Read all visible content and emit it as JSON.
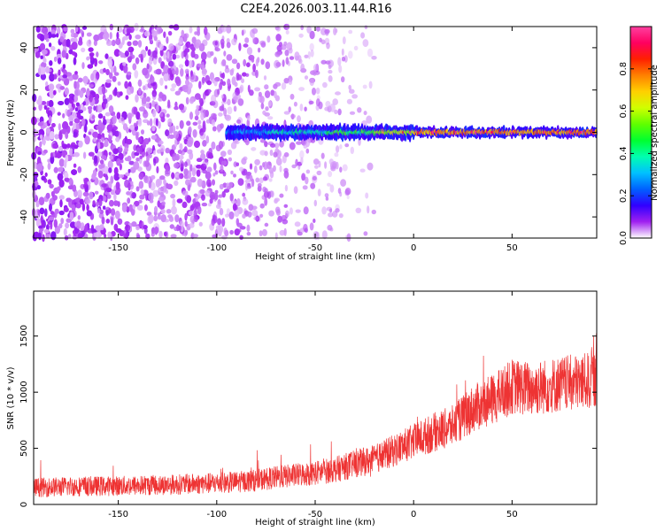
{
  "title": "C2E4.2026.003.11.44.R16",
  "colors": {
    "snr_line": "#ee3333",
    "frame": "#000000"
  },
  "chart_data": [
    {
      "type": "heatmap",
      "title": "C2E4.2026.003.11.44.R16",
      "xlabel": "Height of straight line (km)",
      "ylabel": "Frequency (Hz)",
      "xlim": [
        -193,
        93
      ],
      "ylim": [
        -50,
        50
      ],
      "x_ticks": [
        -150,
        -100,
        -50,
        0,
        50
      ],
      "y_ticks": [
        -40,
        -20,
        0,
        20,
        40
      ],
      "colorbar": {
        "label": "Normalized spectral amplitude",
        "range": [
          0,
          1
        ],
        "ticks": [
          "0.0",
          "0.2",
          "0.4",
          "0.6",
          "0.8"
        ],
        "tick_values": [
          0,
          0.2,
          0.4,
          0.6,
          0.8
        ],
        "colors": [
          "#ffffff",
          "#a020f0",
          "#3000ff",
          "#0060ff",
          "#00c0ff",
          "#00ffb0",
          "#00ff30",
          "#60ff00",
          "#d0ff00",
          "#ffd000",
          "#ff8000",
          "#ff2000",
          "#ff0060",
          "#ff40a0"
        ]
      },
      "noise_band": {
        "x_range": [
          -193,
          -20
        ],
        "amplitude_range": [
          0.02,
          0.1
        ]
      },
      "carrier": {
        "frequency_hz": 0,
        "start_x": -95,
        "end_x": 93,
        "segments": [
          {
            "x_range": [
              -95,
              -75
            ],
            "amplitude": 0.25
          },
          {
            "x_range": [
              -75,
              -45
            ],
            "amplitude": 0.35
          },
          {
            "x_range": [
              -45,
              -20
            ],
            "amplitude": 0.45
          },
          {
            "x_range": [
              -20,
              0
            ],
            "amplitude": 0.6
          },
          {
            "x_range": [
              0,
              93
            ],
            "amplitude": 0.75
          }
        ]
      }
    },
    {
      "type": "line",
      "xlabel": "Height of straight line (km)",
      "ylabel": "SNR (10 * v/v)",
      "xlim": [
        -193,
        93
      ],
      "ylim": [
        0,
        1900
      ],
      "x_ticks": [
        -150,
        -100,
        -50,
        0,
        50
      ],
      "y_ticks": [
        0,
        500,
        1000,
        1500
      ],
      "x": [
        -193,
        -175,
        -150,
        -125,
        -100,
        -90,
        -80,
        -70,
        -60,
        -50,
        -40,
        -30,
        -20,
        -10,
        0,
        10,
        20,
        30,
        40,
        50,
        60,
        70,
        80,
        90,
        93
      ],
      "y": [
        150,
        160,
        165,
        175,
        190,
        200,
        215,
        240,
        260,
        280,
        310,
        360,
        400,
        480,
        560,
        640,
        700,
        850,
        930,
        1050,
        1030,
        1060,
        1080,
        1100,
        1120
      ]
    }
  ]
}
